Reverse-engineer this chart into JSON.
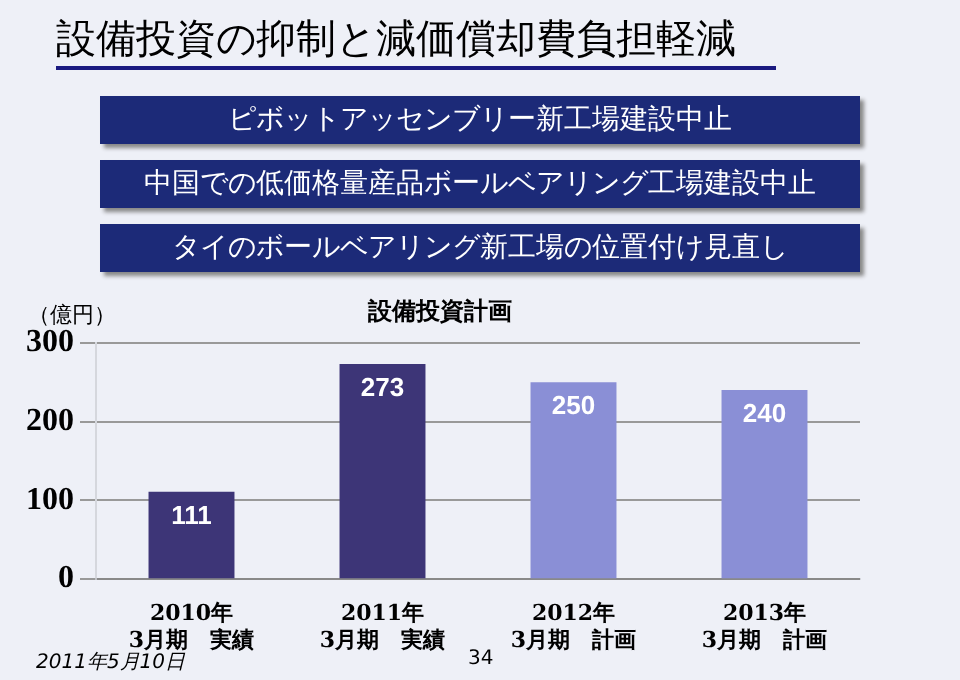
{
  "chart_data": {
    "type": "bar",
    "title": "設備投資計画",
    "ylabel": "（億円）",
    "subtitle": "設備投資の抑制と減価償却費負担軽減",
    "annotations": [
      "ピボットアッセンブリー新工場建設中止",
      "中国での低価格量産品ボールベアリング工場建設中止",
      "タイのボールベアリング新工場の位置付け見直し",
      "2011年5月10日",
      "34"
    ],
    "categories": [
      "2010年\n3月期　実績",
      "2011年\n3月期　実績",
      "2012年\n3月期　計画",
      "2013年\n3月期　計画"
    ],
    "values": [
      111,
      273,
      250,
      240
    ],
    "colors": [
      "#3d3577",
      "#3d3577",
      "#8a8fd6",
      "#8a8fd6"
    ],
    "ylim": [
      0,
      300
    ],
    "yticks": [
      0,
      100,
      200,
      300
    ],
    "grid": "y",
    "data_labels": true,
    "legend": false
  }
}
